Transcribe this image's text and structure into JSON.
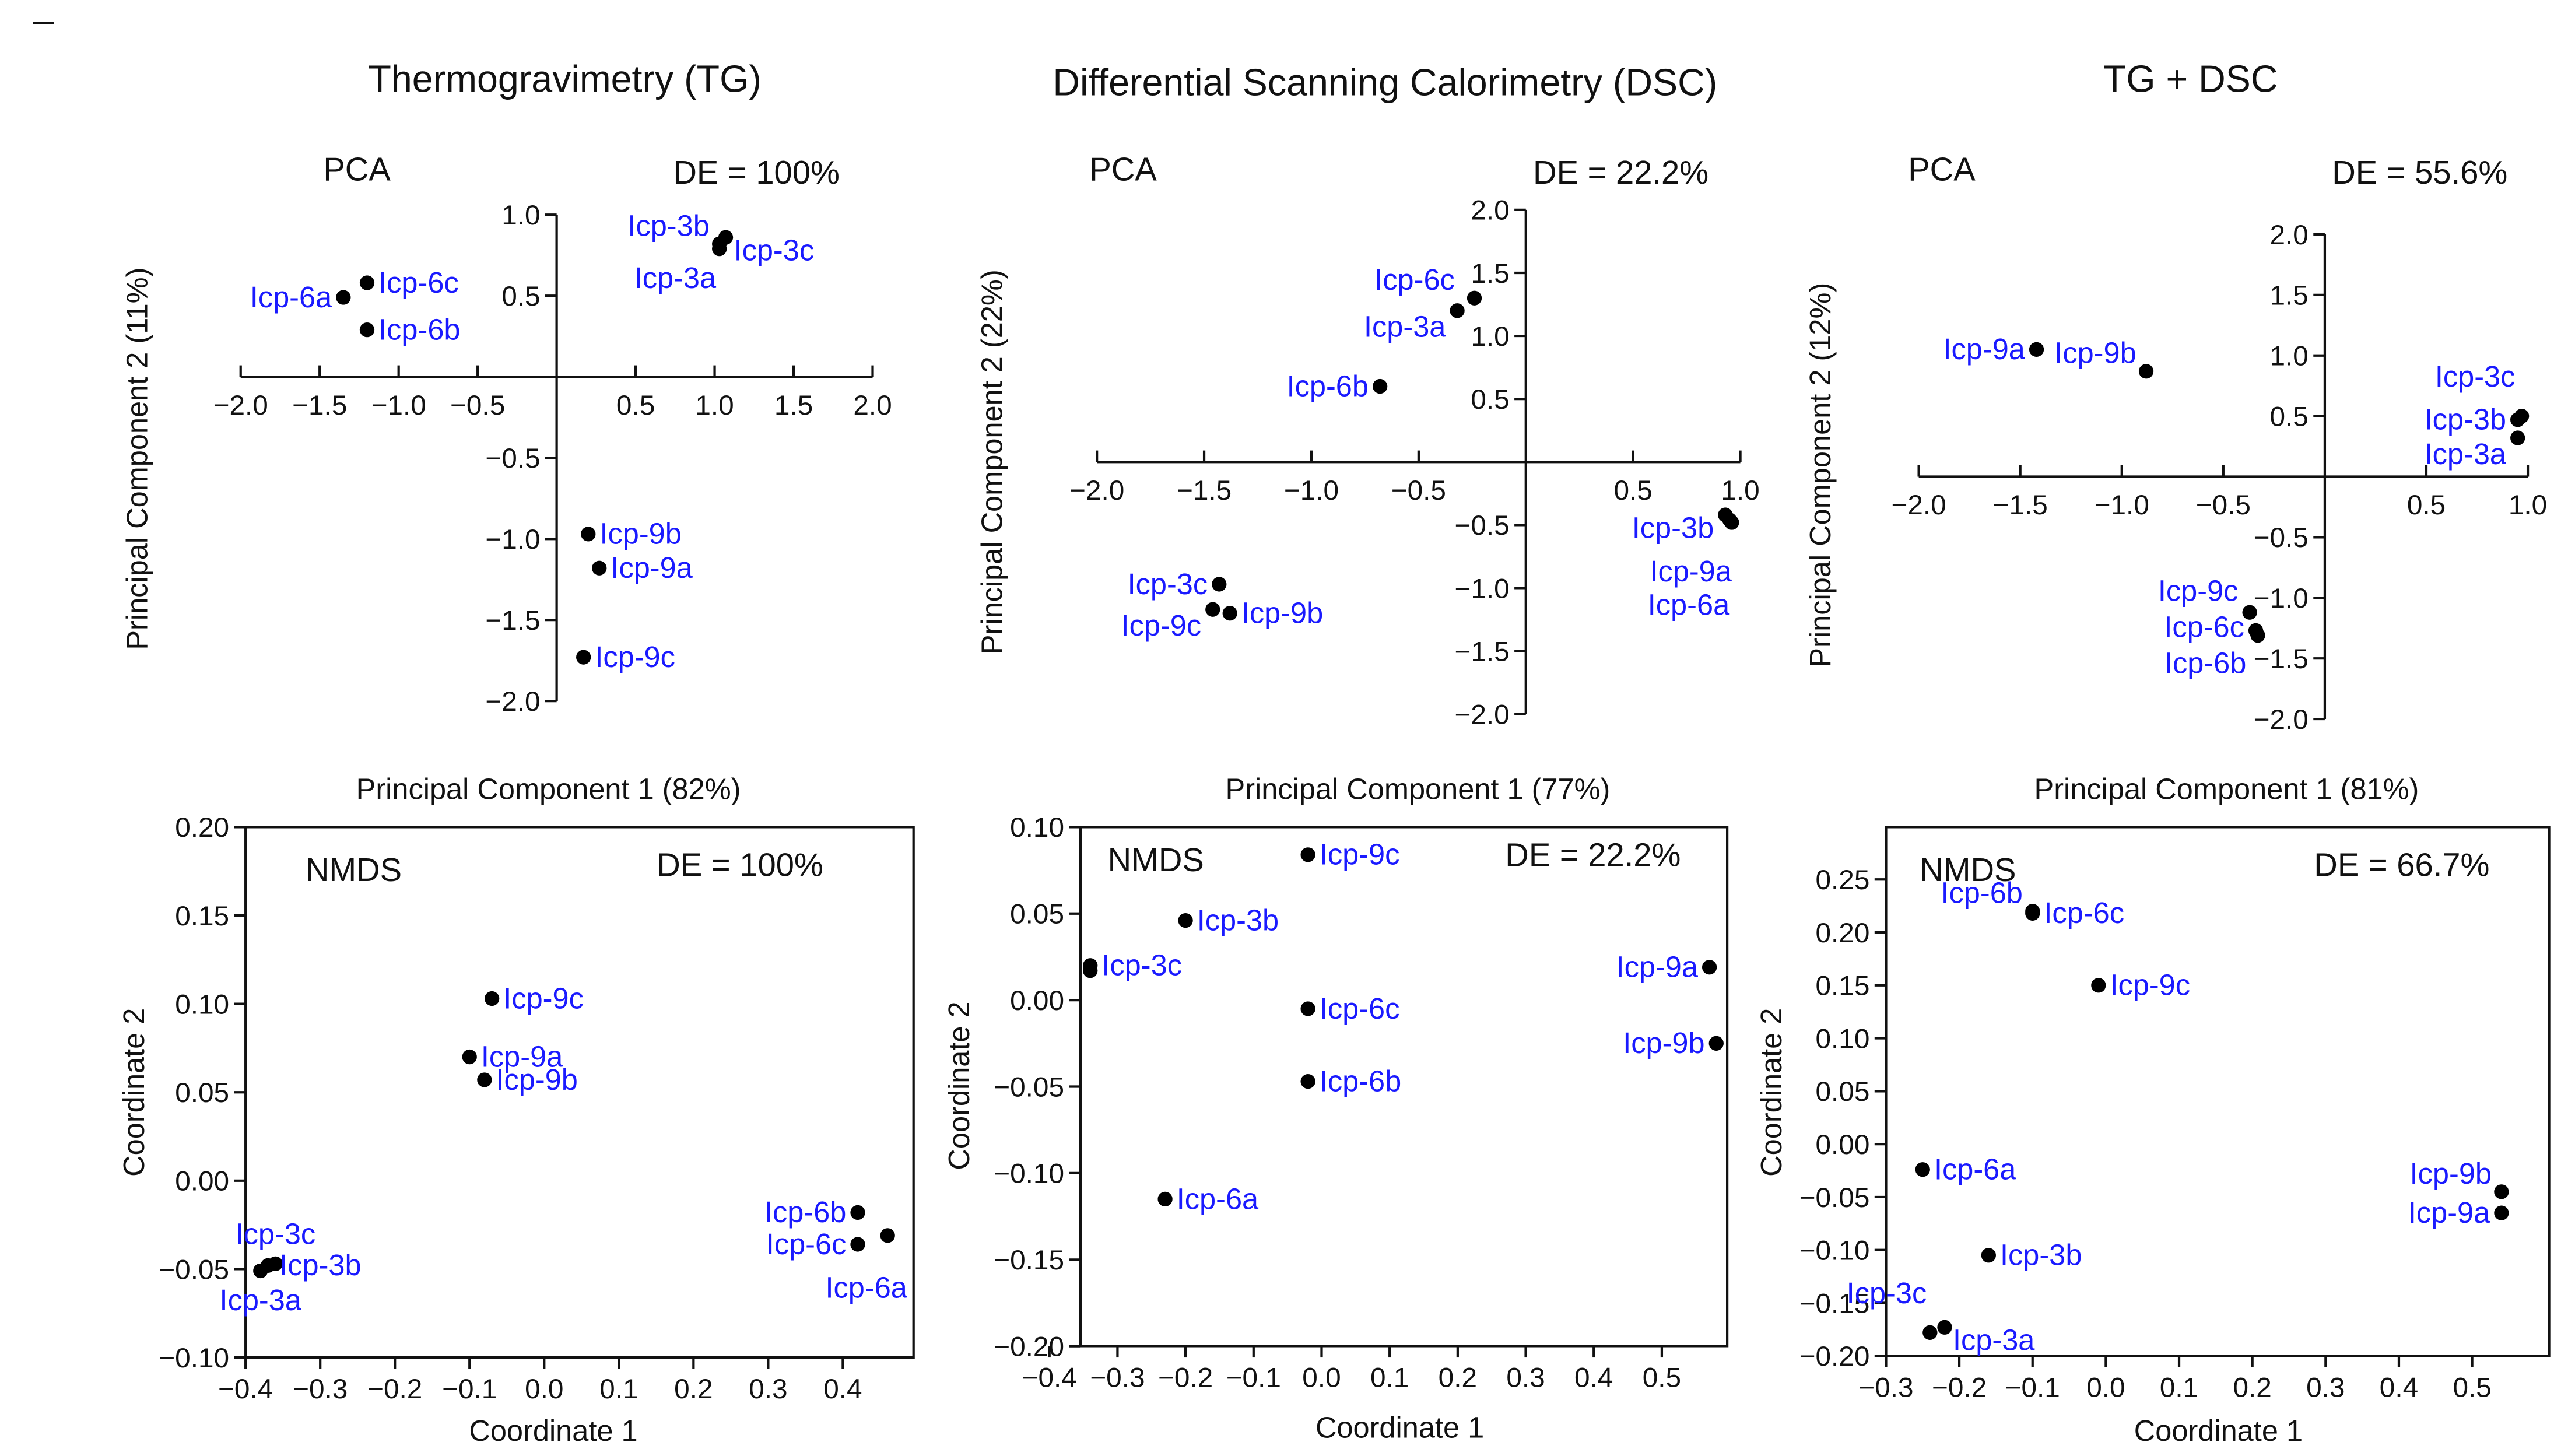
{
  "corner_mark": "–",
  "column_titles": [
    "Thermogravimetry (TG)",
    "Differential Scanning Calorimetry (DSC)",
    "TG + DSC"
  ],
  "colors": {
    "label": "#1a1aff",
    "point": "#000000",
    "axis": "#111111"
  },
  "chart_data": [
    {
      "type": "scatter",
      "method": "PCA",
      "de": "DE = 100%",
      "xlabel": "Principal Component 1 (82%)",
      "ylabel": "Principal Component 2 (11%)",
      "xticks": [
        "−2.0",
        "−1.5",
        "−1.0",
        "−0.5",
        "0.5",
        "1.0",
        "1.5",
        "2.0"
      ],
      "xtick_values": [
        -2,
        -1.5,
        -1,
        -0.5,
        0.5,
        1,
        1.5,
        2
      ],
      "yticks": [
        "1.0",
        "0.5",
        "−0.5",
        "−1.0",
        "−1.5",
        "−2.0"
      ],
      "ytick_values": [
        1,
        0.5,
        -0.5,
        -1,
        -1.5,
        -2
      ],
      "xlim": [
        -2,
        2
      ],
      "ylim": [
        -2,
        1
      ],
      "points": [
        {
          "label": "Icp-3b",
          "x": 1.03,
          "y": 0.82,
          "side": "left-up"
        },
        {
          "label": "Icp-3c",
          "x": 1.07,
          "y": 0.86,
          "side": "right-down"
        },
        {
          "label": "Icp-3a",
          "x": 1.03,
          "y": 0.79,
          "side": "below-left"
        },
        {
          "label": "Icp-6a",
          "x": -1.35,
          "y": 0.49,
          "side": "left"
        },
        {
          "label": "Icp-6c",
          "x": -1.2,
          "y": 0.58,
          "side": "right"
        },
        {
          "label": "Icp-6b",
          "x": -1.2,
          "y": 0.29,
          "side": "right"
        },
        {
          "label": "Icp-9b",
          "x": 0.2,
          "y": -0.97,
          "side": "right"
        },
        {
          "label": "Icp-9a",
          "x": 0.27,
          "y": -1.18,
          "side": "right"
        },
        {
          "label": "Icp-9c",
          "x": 0.17,
          "y": -1.73,
          "side": "right"
        }
      ]
    },
    {
      "type": "scatter",
      "method": "PCA",
      "de": "DE = 22.2%",
      "xlabel": "Principal Component 1 (77%)",
      "ylabel": "Principal Component 2 (22%)",
      "xticks": [
        "−2.0",
        "−1.5",
        "−1.0",
        "−0.5",
        "0.5",
        "1.0"
      ],
      "xtick_values": [
        -2,
        -1.5,
        -1,
        -0.5,
        0.5,
        1
      ],
      "yticks": [
        "2.0",
        "1.5",
        "1.0",
        "0.5",
        "−0.5",
        "−1.0",
        "−1.5",
        "−2.0"
      ],
      "ytick_values": [
        2,
        1.5,
        1,
        0.5,
        -0.5,
        -1,
        -1.5,
        -2
      ],
      "xlim": [
        -2,
        1
      ],
      "ylim": [
        -2,
        2
      ],
      "points": [
        {
          "label": "Icp-6c",
          "x": -0.24,
          "y": 1.3,
          "side": "left-up"
        },
        {
          "label": "Icp-3a",
          "x": -0.32,
          "y": 1.2,
          "side": "left-down"
        },
        {
          "label": "Icp-6b",
          "x": -0.68,
          "y": 0.6,
          "side": "left"
        },
        {
          "label": "Icp-3b",
          "x": 0.93,
          "y": -0.42,
          "side": "left-down"
        },
        {
          "label": "Icp-9a",
          "x": 0.96,
          "y": -0.48,
          "side": "below-left2"
        },
        {
          "label": "Icp-6a",
          "x": 0.95,
          "y": -0.46,
          "side": "below-left3"
        },
        {
          "label": "Icp-3c",
          "x": -1.43,
          "y": -0.97,
          "side": "left"
        },
        {
          "label": "Icp-9c",
          "x": -1.46,
          "y": -1.17,
          "side": "left-down"
        },
        {
          "label": "Icp-9b",
          "x": -1.38,
          "y": -1.2,
          "side": "right"
        }
      ]
    },
    {
      "type": "scatter",
      "method": "PCA",
      "de": "DE = 55.6%",
      "xlabel": "Principal Component 1 (81%)",
      "ylabel": "Principal Component 2 (12%)",
      "xticks": [
        "−2.0",
        "−1.5",
        "−1.0",
        "−0.5",
        "0.5",
        "1.0"
      ],
      "xtick_values": [
        -2,
        -1.5,
        -1,
        -0.5,
        0.5,
        1
      ],
      "yticks": [
        "2.0",
        "1.5",
        "1.0",
        "0.5",
        "−0.5",
        "−1.0",
        "−1.5",
        "−2.0"
      ],
      "ytick_values": [
        2,
        1.5,
        1,
        0.5,
        -0.5,
        -1,
        -1.5,
        -2
      ],
      "xlim": [
        -2,
        1
      ],
      "ylim": [
        -2,
        2
      ],
      "points": [
        {
          "label": "Icp-9a",
          "x": -1.42,
          "y": 1.05,
          "side": "left"
        },
        {
          "label": "Icp-9b",
          "x": -0.88,
          "y": 0.87,
          "side": "left-up"
        },
        {
          "label": "Icp-3c",
          "x": 0.97,
          "y": 0.5,
          "side": "left-up2"
        },
        {
          "label": "Icp-3b",
          "x": 0.95,
          "y": 0.47,
          "side": "left"
        },
        {
          "label": "Icp-3a",
          "x": 0.95,
          "y": 0.32,
          "side": "left-down"
        },
        {
          "label": "Icp-9c",
          "x": -0.37,
          "y": -1.12,
          "side": "left-up"
        },
        {
          "label": "Icp-6c",
          "x": -0.34,
          "y": -1.27,
          "side": "left"
        },
        {
          "label": "Icp-6b",
          "x": -0.33,
          "y": -1.31,
          "side": "left-down"
        }
      ]
    },
    {
      "type": "scatter",
      "method": "NMDS",
      "de": "DE = 100%",
      "xlabel": "Coordinate 1",
      "ylabel": "Coordinate 2",
      "xticks": [
        "−0.4",
        "−0.3",
        "−0.2",
        "−0.1",
        "0.0",
        "0.1",
        "0.2",
        "0.3",
        "0.4"
      ],
      "xtick_values": [
        -0.4,
        -0.3,
        -0.2,
        -0.1,
        0,
        0.1,
        0.2,
        0.3,
        0.4
      ],
      "yticks": [
        "0.20",
        "0.15",
        "0.10",
        "0.05",
        "0.00",
        "−0.05",
        "−0.10"
      ],
      "ytick_values": [
        0.2,
        0.15,
        0.1,
        0.05,
        0,
        -0.05,
        -0.1
      ],
      "xlim": [
        -0.4,
        0.495
      ],
      "ylim": [
        -0.1,
        0.2
      ],
      "points": [
        {
          "label": "Icp-9c",
          "x": -0.07,
          "y": 0.103,
          "side": "right"
        },
        {
          "label": "Icp-9a",
          "x": -0.1,
          "y": 0.07,
          "side": "right"
        },
        {
          "label": "Icp-9b",
          "x": -0.08,
          "y": 0.057,
          "side": "right"
        },
        {
          "label": "Icp-3c",
          "x": -0.36,
          "y": -0.047,
          "side": "above"
        },
        {
          "label": "Icp-3b",
          "x": -0.37,
          "y": -0.048,
          "side": "right"
        },
        {
          "label": "Icp-3a",
          "x": -0.38,
          "y": -0.051,
          "side": "below"
        },
        {
          "label": "Icp-6b",
          "x": 0.42,
          "y": -0.018,
          "side": "left"
        },
        {
          "label": "Icp-6a",
          "x": 0.46,
          "y": -0.031,
          "side": "below-left"
        },
        {
          "label": "Icp-6c",
          "x": 0.42,
          "y": -0.036,
          "side": "left"
        }
      ]
    },
    {
      "type": "scatter",
      "method": "NMDS",
      "de": "DE = 22.2%",
      "xlabel": "Coordinate 1",
      "ylabel": "Coordinate 2",
      "xticks": [
        "−0.4",
        "−0.3",
        "−0.2",
        "−0.1",
        "0.0",
        "0.1",
        "0.2",
        "0.3",
        "0.4",
        "0.5"
      ],
      "xtick_values": [
        -0.4,
        -0.3,
        -0.2,
        -0.1,
        0,
        0.1,
        0.2,
        0.3,
        0.4,
        0.5
      ],
      "yticks": [
        "0.10",
        "0.05",
        "0.00",
        "−0.05",
        "−0.10",
        "−0.15",
        "−0.20"
      ],
      "ytick_values": [
        0.1,
        0.05,
        0,
        -0.05,
        -0.1,
        -0.15,
        -0.2
      ],
      "xlim": [
        -0.354,
        0.596
      ],
      "ylim": [
        -0.2,
        0.1
      ],
      "points": [
        {
          "label": "Icp-9c",
          "x": -0.02,
          "y": 0.084,
          "side": "right"
        },
        {
          "label": "Icp-3b",
          "x": -0.2,
          "y": 0.046,
          "side": "right"
        },
        {
          "label": "Icp-3c",
          "x": -0.34,
          "y": 0.02,
          "side": "right"
        },
        {
          "label": "",
          "x": -0.34,
          "y": 0.017,
          "side": "none"
        },
        {
          "label": "Icp-6c",
          "x": -0.02,
          "y": -0.005,
          "side": "right"
        },
        {
          "label": "Icp-6b",
          "x": -0.02,
          "y": -0.047,
          "side": "right"
        },
        {
          "label": "Icp-6a",
          "x": -0.23,
          "y": -0.115,
          "side": "right"
        },
        {
          "label": "Icp-9a",
          "x": 0.57,
          "y": 0.019,
          "side": "left"
        },
        {
          "label": "Icp-9b",
          "x": 0.58,
          "y": -0.025,
          "side": "left"
        }
      ]
    },
    {
      "type": "scatter",
      "method": "NMDS",
      "de": "DE = 66.7%",
      "xlabel": "Coordinate 1",
      "ylabel": "Coordinate 2",
      "xticks": [
        "−0.3",
        "−0.2",
        "−0.1",
        "0.0",
        "0.1",
        "0.2",
        "0.3",
        "0.4",
        "0.5"
      ],
      "xtick_values": [
        -0.3,
        -0.2,
        -0.1,
        0,
        0.1,
        0.2,
        0.3,
        0.4,
        0.5
      ],
      "yticks": [
        "0.25",
        "0.20",
        "0.15",
        "0.10",
        "0.05",
        "0.00",
        "−0.05",
        "−0.10",
        "−0.15",
        "−0.20"
      ],
      "ytick_values": [
        0.25,
        0.2,
        0.15,
        0.1,
        0.05,
        0,
        -0.05,
        -0.1,
        -0.15,
        -0.2
      ],
      "xlim": [
        -0.3,
        0.605
      ],
      "ylim": [
        -0.2,
        0.3
      ],
      "points": [
        {
          "label": "Icp-6b",
          "x": -0.1,
          "y": 0.22,
          "side": "left-up"
        },
        {
          "label": "Icp-6c",
          "x": -0.1,
          "y": 0.218,
          "side": "right"
        },
        {
          "label": "Icp-9c",
          "x": -0.01,
          "y": 0.15,
          "side": "right"
        },
        {
          "label": "Icp-6a",
          "x": -0.25,
          "y": -0.024,
          "side": "right"
        },
        {
          "label": "Icp-9b",
          "x": 0.54,
          "y": -0.045,
          "side": "left-up"
        },
        {
          "label": "Icp-9a",
          "x": 0.54,
          "y": -0.065,
          "side": "left"
        },
        {
          "label": "Icp-3b",
          "x": -0.16,
          "y": -0.105,
          "side": "right"
        },
        {
          "label": "Icp-3c",
          "x": -0.24,
          "y": -0.178,
          "side": "above-left"
        },
        {
          "label": "Icp-3a",
          "x": -0.22,
          "y": -0.173,
          "side": "right-down"
        }
      ]
    }
  ]
}
